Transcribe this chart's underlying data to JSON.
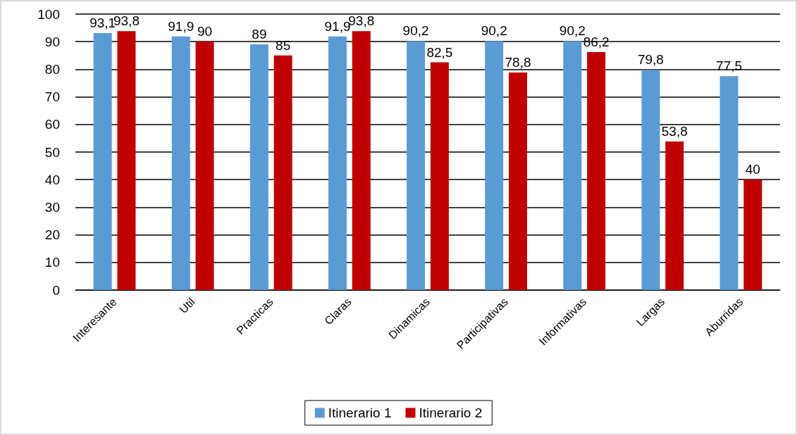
{
  "chart_data": {
    "type": "bar",
    "categories": [
      "Interesante",
      "Util",
      "Practicas",
      "Claras",
      "Dinamicas",
      "Participativas",
      "Informativas",
      "Largas",
      "Aburridas"
    ],
    "series": [
      {
        "name": "Itinerario 1",
        "color": "#5b9bd5",
        "values": [
          93.1,
          91.9,
          89,
          91.9,
          90.2,
          90.2,
          90.2,
          79.8,
          77.5
        ],
        "value_labels": [
          "93,1",
          "91,9",
          "89",
          "91,9",
          "90,2",
          "90,2",
          "90,2",
          "79,8",
          "77,5"
        ]
      },
      {
        "name": "Itinerario 2",
        "color": "#c00000",
        "values": [
          93.8,
          90,
          85,
          93.8,
          82.5,
          78.8,
          86.2,
          53.8,
          40
        ],
        "value_labels": [
          "93,8",
          "90",
          "85",
          "93,8",
          "82,5",
          "78,8",
          "86,2",
          "53,8",
          "40"
        ]
      }
    ],
    "ylim": [
      0,
      100
    ],
    "yticks": [
      0,
      10,
      20,
      30,
      40,
      50,
      60,
      70,
      80,
      90,
      100
    ],
    "grid": "y",
    "legend": "bottom"
  }
}
